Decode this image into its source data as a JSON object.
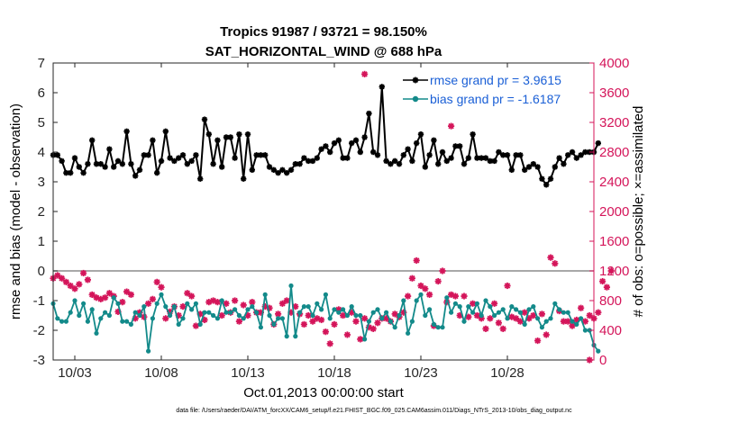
{
  "chart_data": {
    "type": "line",
    "title": "Tropics 91987 / 93721 = 98.150%",
    "subtitle": "SAT_HORIZONTAL_WIND @ 688 hPa",
    "xlabel": "Oct.01,2013 00:00:00 start",
    "ylabel_left": "rmse and bias (model - observation)",
    "ylabel_right": "# of obs: o=possible; ×=assimilated",
    "ylim_left": [
      -3,
      7
    ],
    "ylim_right": [
      0,
      4000
    ],
    "xlim_days": [
      0.75,
      32.0
    ],
    "x_ticks": [
      {
        "day": 2,
        "label": "10/03"
      },
      {
        "day": 7,
        "label": "10/08"
      },
      {
        "day": 12,
        "label": "10/13"
      },
      {
        "day": 17,
        "label": "10/18"
      },
      {
        "day": 22,
        "label": "10/23"
      },
      {
        "day": 27,
        "label": "10/28"
      }
    ],
    "y_ticks_left": [
      {
        "value": -3,
        "label": "-3"
      },
      {
        "value": -2,
        "label": "-2"
      },
      {
        "value": -1,
        "label": "-1"
      },
      {
        "value": 0,
        "label": "0"
      },
      {
        "value": 1,
        "label": "1"
      },
      {
        "value": 2,
        "label": "2"
      },
      {
        "value": 3,
        "label": "3"
      },
      {
        "value": 4,
        "label": "4"
      },
      {
        "value": 5,
        "label": "5"
      },
      {
        "value": 6,
        "label": "6"
      },
      {
        "value": 7,
        "label": "7"
      }
    ],
    "y_ticks_right": [
      {
        "value": 0,
        "label": "0"
      },
      {
        "value": 400,
        "label": "400"
      },
      {
        "value": 800,
        "label": "800"
      },
      {
        "value": 1200,
        "label": "1200"
      },
      {
        "value": 1600,
        "label": "1600"
      },
      {
        "value": 2000,
        "label": "2000"
      },
      {
        "value": 2400,
        "label": "2400"
      },
      {
        "value": 2800,
        "label": "2800"
      },
      {
        "value": 3200,
        "label": "3200"
      },
      {
        "value": 3600,
        "label": "3600"
      },
      {
        "value": 4000,
        "label": "4000"
      }
    ],
    "colors": {
      "rmse": "#000000",
      "bias": "#138a8a",
      "obs": "#d4155a",
      "zero_line": "#8c8c8c",
      "legend_text": "#1a5fd6"
    },
    "legend": [
      {
        "series": "rmse",
        "label": "rmse grand pr = 3.9615"
      },
      {
        "series": "bias",
        "label": "bias grand pr = -1.6187"
      }
    ],
    "legend_position": "top-right",
    "x_start": 0.75,
    "x_step": 0.25,
    "series": [
      {
        "name": "rmse",
        "values": [
          3.9,
          3.9,
          3.7,
          3.3,
          3.3,
          3.8,
          3.5,
          3.3,
          3.6,
          4.4,
          3.6,
          3.6,
          3.5,
          4.1,
          3.5,
          3.7,
          3.6,
          4.7,
          3.6,
          3.2,
          3.4,
          3.9,
          3.9,
          4.4,
          3.3,
          3.7,
          4.7,
          3.8,
          3.7,
          3.8,
          3.9,
          3.6,
          3.7,
          3.9,
          3.1,
          5.1,
          4.6,
          3.6,
          4.4,
          3.5,
          4.5,
          4.5,
          3.8,
          4.6,
          3.1,
          4.6,
          3.4,
          3.9,
          3.9,
          3.9,
          3.5,
          3.4,
          3.3,
          3.4,
          3.3,
          3.4,
          3.6,
          3.6,
          3.8,
          3.7,
          3.7,
          3.8,
          4.1,
          4.2,
          4.0,
          4.3,
          4.4,
          3.8,
          3.8,
          4.3,
          4.4,
          4.0,
          4.5,
          5.3,
          4.0,
          3.9,
          6.2,
          3.7,
          3.6,
          3.7,
          3.6,
          3.9,
          4.1,
          3.7,
          4.3,
          4.6,
          3.5,
          3.9,
          4.4,
          3.6,
          4.0,
          3.7,
          3.8,
          4.2,
          4.2,
          3.6,
          3.8,
          4.6,
          3.8,
          3.8,
          3.8,
          3.7,
          3.7,
          4.0,
          3.9,
          3.9,
          3.4,
          3.9,
          3.9,
          3.4,
          3.5,
          3.6,
          3.5,
          3.1,
          2.9,
          3.1,
          3.5,
          3.8,
          3.6,
          3.9,
          4.0,
          3.8,
          3.9,
          4.0,
          4.0,
          4.0,
          4.3
        ]
      },
      {
        "name": "bias",
        "values": [
          -1.1,
          -1.6,
          -1.7,
          -1.7,
          -1.4,
          -1.0,
          -1.5,
          -1.1,
          -1.7,
          -1.3,
          -2.1,
          -1.6,
          -1.4,
          -1.5,
          -0.9,
          -1.1,
          -1.7,
          -1.7,
          -1.8,
          -1.4,
          -1.5,
          -1.2,
          -2.7,
          -1.6,
          -1.1,
          -0.8,
          -1.2,
          -1.5,
          -1.2,
          -1.8,
          -1.6,
          -1.1,
          -1.3,
          -1.1,
          -1.8,
          -1.4,
          -1.4,
          -1.5,
          -1.6,
          -1.0,
          -1.4,
          -1.4,
          -1.3,
          -1.5,
          -1.6,
          -1.3,
          -1.2,
          -1.4,
          -1.9,
          -0.8,
          -1.5,
          -1.8,
          -1.6,
          -1.6,
          -2.2,
          -0.5,
          -2.2,
          -1.4,
          -1.2,
          -1.2,
          -1.5,
          -1.1,
          -1.3,
          -0.8,
          -1.6,
          -1.3,
          -1.4,
          -1.3,
          -1.5,
          -1.2,
          -1.5,
          -1.5,
          -2.3,
          -1.7,
          -1.4,
          -1.3,
          -1.6,
          -1.4,
          -1.7,
          -1.9,
          -1.5,
          -1.0,
          -2.1,
          -1.7,
          -1.0,
          -0.8,
          -1.5,
          -1.3,
          -1.8,
          -1.9,
          -1.9,
          -0.9,
          -1.4,
          -1.1,
          -1.2,
          -1.7,
          -1.2,
          -1.4,
          -1.1,
          -1.5,
          -1.0,
          -1.2,
          -1.5,
          -1.4,
          -1.3,
          -1.6,
          -1.2,
          -1.3,
          -1.4,
          -1.8,
          -1.3,
          -1.2,
          -1.6,
          -1.9,
          -1.7,
          -1.6,
          -1.1,
          -1.3,
          -1.4,
          -1.4,
          -1.7,
          -1.8,
          -1.6,
          -2.0,
          -2.0,
          -2.5,
          -2.7
        ]
      },
      {
        "name": "obs",
        "values": [
          1100,
          1140,
          1100,
          1050,
          1000,
          960,
          1020,
          1170,
          1080,
          880,
          840,
          820,
          840,
          900,
          860,
          650,
          780,
          920,
          880,
          560,
          640,
          580,
          760,
          820,
          1050,
          980,
          560,
          650,
          720,
          600,
          720,
          900,
          860,
          460,
          620,
          540,
          780,
          800,
          780,
          600,
          760,
          640,
          800,
          520,
          740,
          600,
          780,
          640,
          640,
          720,
          700,
          480,
          620,
          760,
          800,
          640,
          720,
          620,
          480,
          600,
          520,
          560,
          540,
          380,
          220,
          480,
          680,
          600,
          340,
          640,
          520,
          280,
          560,
          440,
          420,
          500,
          560,
          560,
          520,
          620,
          580,
          640,
          860,
          1100,
          1340,
          1000,
          960,
          880,
          460,
          1060,
          1200,
          780,
          880,
          860,
          600,
          860,
          580,
          760,
          600,
          560,
          420,
          560,
          760,
          500,
          420,
          1000,
          580,
          560,
          520,
          640,
          560,
          600,
          260,
          620,
          340,
          1380,
          1300,
          660,
          520,
          520,
          460,
          540,
          700,
          520,
          600,
          560,
          640,
          1060,
          980,
          1200
        ]
      },
      {
        "name": "obs_outliers",
        "points": [
          {
            "day": 18.75,
            "value": 3850
          },
          {
            "day": 23.75,
            "value": 3150
          },
          {
            "day": 31.75,
            "value": 0
          }
        ]
      }
    ]
  },
  "footer": {
    "text": "data file: /Users/raeder/DAI/ATM_forcXX/CAM6_setup/f.e21.FHIST_BGC.f09_025.CAM6assim.011/Diags_NTrS_2013-10/obs_diag_output.nc"
  }
}
